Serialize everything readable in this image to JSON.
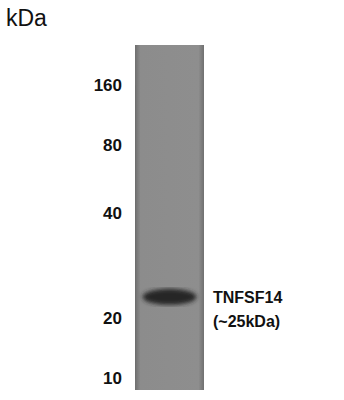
{
  "chart_data": {
    "type": "western_blot",
    "y_label": "kDa",
    "log": "y",
    "ylim": [
      10,
      160
    ],
    "yticks": [
      10,
      20,
      40,
      80,
      160
    ],
    "categories": [
      null
    ],
    "series": [
      {
        "name": "TNFSF14",
        "values": [
          23
        ]
      }
    ],
    "annotations": [
      "(~25kDa)"
    ]
  }
}
